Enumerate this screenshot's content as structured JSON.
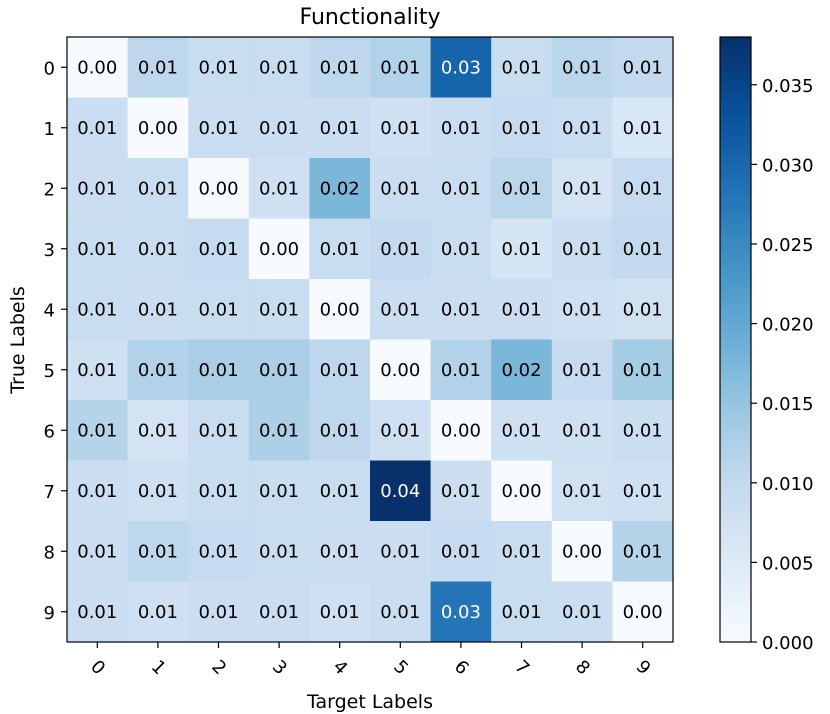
{
  "chart_data": {
    "type": "heatmap",
    "title": "Functionality",
    "xlabel": "Target Labels",
    "ylabel": "True Labels",
    "x_categories": [
      "0",
      "1",
      "2",
      "3",
      "4",
      "5",
      "6",
      "7",
      "8",
      "9"
    ],
    "y_categories": [
      "0",
      "1",
      "2",
      "3",
      "4",
      "5",
      "6",
      "7",
      "8",
      "9"
    ],
    "value_labels": [
      [
        "0.00",
        "0.01",
        "0.01",
        "0.01",
        "0.01",
        "0.01",
        "0.03",
        "0.01",
        "0.01",
        "0.01"
      ],
      [
        "0.01",
        "0.00",
        "0.01",
        "0.01",
        "0.01",
        "0.01",
        "0.01",
        "0.01",
        "0.01",
        "0.01"
      ],
      [
        "0.01",
        "0.01",
        "0.00",
        "0.01",
        "0.02",
        "0.01",
        "0.01",
        "0.01",
        "0.01",
        "0.01"
      ],
      [
        "0.01",
        "0.01",
        "0.01",
        "0.00",
        "0.01",
        "0.01",
        "0.01",
        "0.01",
        "0.01",
        "0.01"
      ],
      [
        "0.01",
        "0.01",
        "0.01",
        "0.01",
        "0.00",
        "0.01",
        "0.01",
        "0.01",
        "0.01",
        "0.01"
      ],
      [
        "0.01",
        "0.01",
        "0.01",
        "0.01",
        "0.01",
        "0.00",
        "0.01",
        "0.02",
        "0.01",
        "0.01"
      ],
      [
        "0.01",
        "0.01",
        "0.01",
        "0.01",
        "0.01",
        "0.01",
        "0.00",
        "0.01",
        "0.01",
        "0.01"
      ],
      [
        "0.01",
        "0.01",
        "0.01",
        "0.01",
        "0.01",
        "0.04",
        "0.01",
        "0.00",
        "0.01",
        "0.01"
      ],
      [
        "0.01",
        "0.01",
        "0.01",
        "0.01",
        "0.01",
        "0.01",
        "0.01",
        "0.01",
        "0.00",
        "0.01"
      ],
      [
        "0.01",
        "0.01",
        "0.01",
        "0.01",
        "0.01",
        "0.01",
        "0.03",
        "0.01",
        "0.01",
        "0.00"
      ]
    ],
    "values": [
      [
        0.0,
        0.0105,
        0.009,
        0.009,
        0.0105,
        0.012,
        0.0305,
        0.009,
        0.011,
        0.01
      ],
      [
        0.0085,
        0.0,
        0.0085,
        0.0085,
        0.0085,
        0.008,
        0.0085,
        0.0095,
        0.009,
        0.006
      ],
      [
        0.0085,
        0.009,
        0.0,
        0.008,
        0.0175,
        0.0085,
        0.009,
        0.011,
        0.007,
        0.0095
      ],
      [
        0.009,
        0.009,
        0.0095,
        0.0,
        0.009,
        0.01,
        0.009,
        0.0065,
        0.0085,
        0.01
      ],
      [
        0.009,
        0.0085,
        0.009,
        0.009,
        0.0,
        0.0085,
        0.0085,
        0.0085,
        0.008,
        0.0075
      ],
      [
        0.008,
        0.012,
        0.013,
        0.013,
        0.0105,
        0.0,
        0.012,
        0.0175,
        0.0095,
        0.0135
      ],
      [
        0.0115,
        0.007,
        0.009,
        0.0125,
        0.0105,
        0.008,
        0.0,
        0.008,
        0.008,
        0.0085
      ],
      [
        0.0085,
        0.008,
        0.009,
        0.009,
        0.009,
        0.038,
        0.0085,
        0.0,
        0.0075,
        0.008
      ],
      [
        0.0085,
        0.0105,
        0.0095,
        0.009,
        0.0085,
        0.0085,
        0.0095,
        0.009,
        0.0,
        0.0115
      ],
      [
        0.0085,
        0.008,
        0.0085,
        0.0085,
        0.008,
        0.0085,
        0.028,
        0.009,
        0.0085,
        0.0
      ]
    ],
    "vmin": 0.0,
    "vmax": 0.038,
    "colormap": "Blues",
    "colorbar_ticks": [
      0.0,
      0.005,
      0.01,
      0.015,
      0.02,
      0.025,
      0.03,
      0.035
    ],
    "colorbar_tick_labels": [
      "0.000",
      "0.005",
      "0.010",
      "0.015",
      "0.020",
      "0.025",
      "0.030",
      "0.035"
    ],
    "x_tick_rotation_deg": 45
  }
}
